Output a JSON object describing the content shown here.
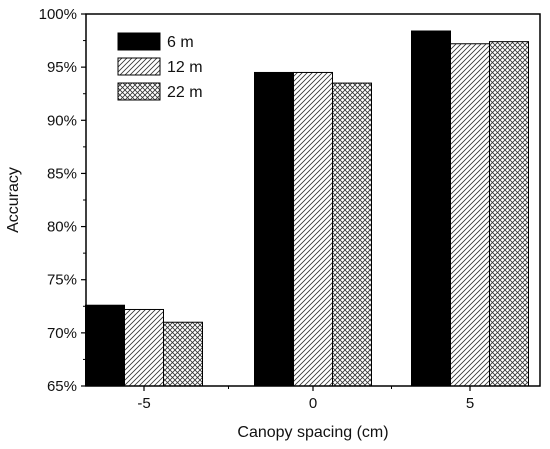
{
  "chart_data": {
    "type": "bar",
    "title": "",
    "xlabel": "Canopy spacing (cm)",
    "ylabel": "Accuracy",
    "categories": [
      "-5",
      "0",
      "5"
    ],
    "series": [
      {
        "name": "6 m",
        "values": [
          72.6,
          94.5,
          98.4
        ]
      },
      {
        "name": "12 m",
        "values": [
          72.2,
          94.5,
          97.2
        ]
      },
      {
        "name": "22 m",
        "values": [
          71.0,
          93.5,
          97.4
        ]
      }
    ],
    "ylim": [
      65,
      100
    ],
    "yticks": [
      "65%",
      "70%",
      "75%",
      "80%",
      "85%",
      "90%",
      "95%",
      "100%"
    ],
    "ytick_values": [
      65,
      70,
      75,
      80,
      85,
      90,
      95,
      100
    ],
    "legend_position": "top-left",
    "grid": false
  }
}
